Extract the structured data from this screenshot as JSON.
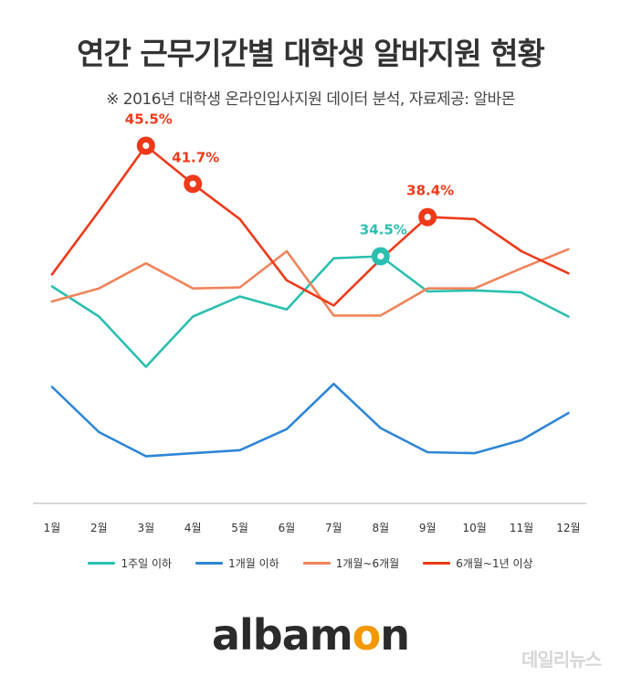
{
  "header": {
    "title": "연간 근무기간별 대학생 알바지원 현황",
    "subtitle": "※ 2016년 대학생 온라인입사지원 데이터 분석, 자료제공: 알바몬"
  },
  "logo": {
    "text_main": "albam",
    "text_accent": "o",
    "text_end": "n"
  },
  "watermark": "데일리뉴스",
  "colors": {
    "teal": "#2bbfb0",
    "blue": "#2e86d6",
    "orange": "#f0845a",
    "red": "#ee3a1a",
    "axis": "#cccccc"
  },
  "chart_data": {
    "type": "line",
    "title": "연간 근무기간별 대학생 알바지원 현황",
    "subtitle": "※ 2016년 대학생 온라인입사지원 데이터 분석, 자료제공: 알바몬",
    "categories": [
      "1월",
      "2월",
      "3월",
      "4월",
      "5월",
      "6월",
      "7월",
      "8월",
      "9월",
      "10월",
      "11월",
      "12월"
    ],
    "ylim": [
      5,
      50
    ],
    "grid": false,
    "legend_position": "bottom",
    "series": [
      {
        "name": "1주일 이하",
        "color": "#2bbfb0",
        "values": [
          31.5,
          28.5,
          23.5,
          28.5,
          30.5,
          29.2,
          34.3,
          34.5,
          31.0,
          31.1,
          30.9,
          28.5
        ]
      },
      {
        "name": "1개월 이하",
        "color": "#2e86d6",
        "values": [
          21.5,
          17.0,
          14.6,
          14.9,
          15.2,
          17.3,
          21.8,
          17.4,
          15.0,
          14.9,
          16.2,
          18.9
        ]
      },
      {
        "name": "1개월~6개월",
        "color": "#f0845a",
        "values": [
          30.0,
          31.3,
          33.8,
          31.3,
          31.4,
          35.0,
          28.6,
          28.6,
          31.3,
          31.3,
          33.3,
          35.2
        ]
      },
      {
        "name": "6개월~1년 이상",
        "color": "#ee3a1a",
        "values": [
          32.7,
          39.0,
          45.5,
          41.7,
          38.2,
          32.1,
          29.6,
          34.2,
          38.4,
          38.2,
          35.0,
          32.8
        ]
      }
    ],
    "annotations": [
      {
        "series": "6개월~1년 이상",
        "category": "3월",
        "label": "45.5%"
      },
      {
        "series": "6개월~1년 이상",
        "category": "4월",
        "label": "41.7%"
      },
      {
        "series": "1주일 이하",
        "category": "8월",
        "label": "34.5%"
      },
      {
        "series": "6개월~1년 이상",
        "category": "9월",
        "label": "38.4%"
      }
    ]
  }
}
